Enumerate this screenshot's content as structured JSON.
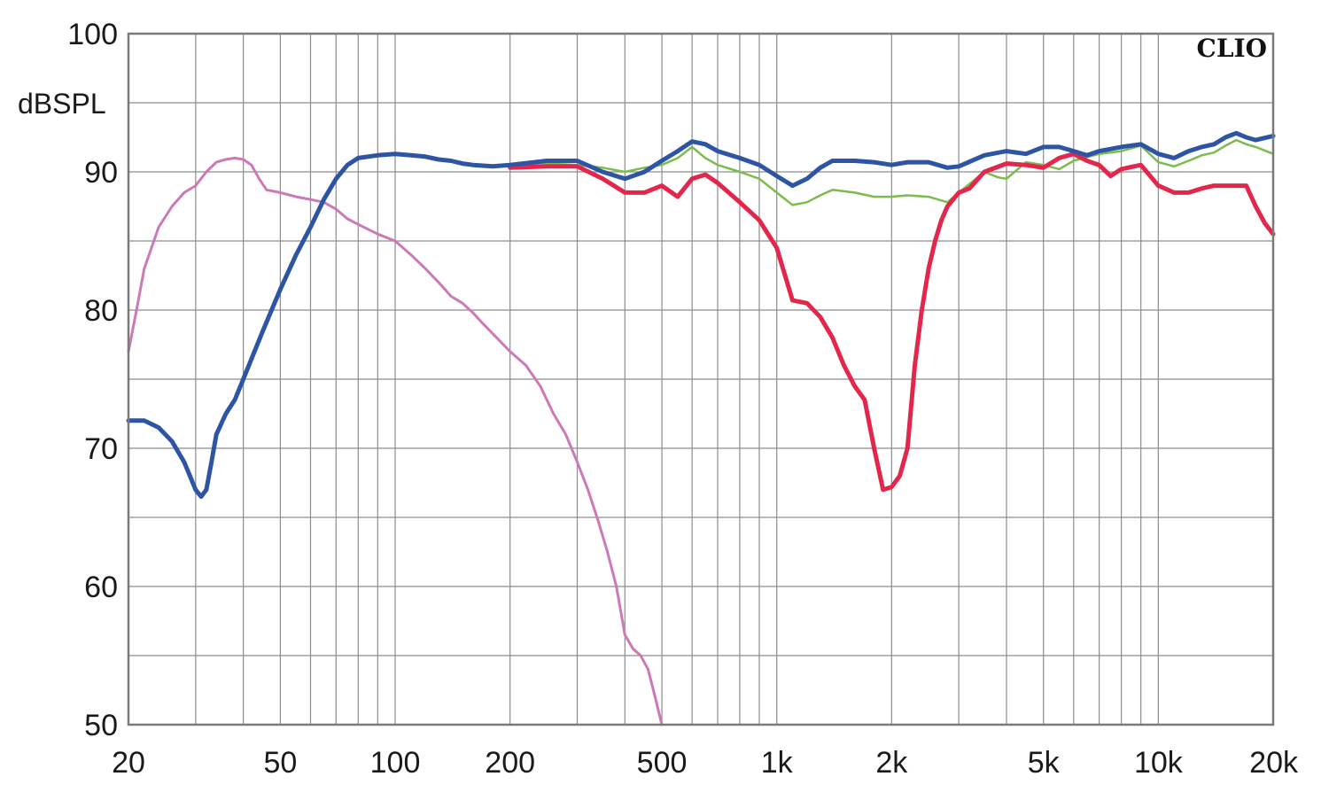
{
  "chart_data": {
    "type": "line",
    "brand": "CLIO",
    "ylabel": "dBSPL",
    "xscale": "log",
    "xlim": [
      20,
      20000
    ],
    "ylim": [
      50,
      100
    ],
    "grid": true,
    "yticks": [
      {
        "value": 100,
        "label": "100"
      },
      {
        "value": 90,
        "label": "90"
      },
      {
        "value": 80,
        "label": "80"
      },
      {
        "value": 70,
        "label": "70"
      },
      {
        "value": 60,
        "label": "60"
      },
      {
        "value": 50,
        "label": "50"
      }
    ],
    "xticks": [
      {
        "value": 20,
        "label": "20"
      },
      {
        "value": 50,
        "label": "50"
      },
      {
        "value": 100,
        "label": "100"
      },
      {
        "value": 200,
        "label": "200"
      },
      {
        "value": 500,
        "label": "500"
      },
      {
        "value": 1000,
        "label": "1k"
      },
      {
        "value": 2000,
        "label": "2k"
      },
      {
        "value": 5000,
        "label": "5k"
      },
      {
        "value": 10000,
        "label": "10k"
      },
      {
        "value": 20000,
        "label": "20k"
      }
    ],
    "series": [
      {
        "color": "#cc79b8",
        "width": 3,
        "points": [
          [
            20,
            77
          ],
          [
            21,
            80
          ],
          [
            22,
            83
          ],
          [
            24,
            86
          ],
          [
            26,
            87.5
          ],
          [
            28,
            88.5
          ],
          [
            30,
            89
          ],
          [
            32,
            90
          ],
          [
            34,
            90.7
          ],
          [
            36,
            90.9
          ],
          [
            38,
            91
          ],
          [
            40,
            90.9
          ],
          [
            42,
            90.5
          ],
          [
            44,
            89.5
          ],
          [
            46,
            88.7
          ],
          [
            50,
            88.5
          ],
          [
            55,
            88.2
          ],
          [
            60,
            88
          ],
          [
            65,
            87.8
          ],
          [
            70,
            87.3
          ],
          [
            75,
            86.6
          ],
          [
            80,
            86.2
          ],
          [
            90,
            85.5
          ],
          [
            100,
            85
          ],
          [
            110,
            84
          ],
          [
            120,
            83
          ],
          [
            130,
            82
          ],
          [
            140,
            81
          ],
          [
            150,
            80.5
          ],
          [
            160,
            79.8
          ],
          [
            170,
            79
          ],
          [
            180,
            78.3
          ],
          [
            200,
            77
          ],
          [
            220,
            76
          ],
          [
            240,
            74.5
          ],
          [
            260,
            72.5
          ],
          [
            280,
            71
          ],
          [
            300,
            69
          ],
          [
            320,
            67
          ],
          [
            340,
            64.8
          ],
          [
            360,
            62.5
          ],
          [
            380,
            60
          ],
          [
            400,
            56.5
          ],
          [
            420,
            55.5
          ],
          [
            440,
            55
          ],
          [
            460,
            54
          ],
          [
            480,
            52
          ],
          [
            500,
            50
          ]
        ]
      },
      {
        "color": "#7cbb4c",
        "width": 2.5,
        "points": [
          [
            200,
            90.5
          ],
          [
            250,
            90.6
          ],
          [
            300,
            90.5
          ],
          [
            350,
            90.3
          ],
          [
            400,
            90
          ],
          [
            450,
            90.3
          ],
          [
            500,
            90.5
          ],
          [
            550,
            91
          ],
          [
            600,
            91.8
          ],
          [
            650,
            91
          ],
          [
            700,
            90.5
          ],
          [
            800,
            90
          ],
          [
            900,
            89.5
          ],
          [
            1000,
            88.5
          ],
          [
            1100,
            87.6
          ],
          [
            1200,
            87.8
          ],
          [
            1300,
            88.3
          ],
          [
            1400,
            88.7
          ],
          [
            1600,
            88.5
          ],
          [
            1800,
            88.2
          ],
          [
            2000,
            88.2
          ],
          [
            2200,
            88.3
          ],
          [
            2500,
            88.2
          ],
          [
            2800,
            87.8
          ],
          [
            3000,
            88.5
          ],
          [
            3500,
            90
          ],
          [
            3800,
            89.6
          ],
          [
            4000,
            89.5
          ],
          [
            4500,
            90.7
          ],
          [
            5000,
            90.5
          ],
          [
            5500,
            90.2
          ],
          [
            6000,
            90.8
          ],
          [
            7000,
            91.3
          ],
          [
            8000,
            91.5
          ],
          [
            9000,
            91.9
          ],
          [
            10000,
            90.7
          ],
          [
            11000,
            90.4
          ],
          [
            12000,
            90.8
          ],
          [
            13000,
            91.2
          ],
          [
            14000,
            91.4
          ],
          [
            15000,
            91.9
          ],
          [
            16000,
            92.3
          ],
          [
            17000,
            92
          ],
          [
            18000,
            91.8
          ],
          [
            20000,
            91.3
          ]
        ]
      },
      {
        "color": "#e3274c",
        "width": 5,
        "points": [
          [
            200,
            90.3
          ],
          [
            250,
            90.4
          ],
          [
            300,
            90.4
          ],
          [
            350,
            89.5
          ],
          [
            400,
            88.5
          ],
          [
            450,
            88.5
          ],
          [
            500,
            89
          ],
          [
            550,
            88.2
          ],
          [
            600,
            89.5
          ],
          [
            650,
            89.8
          ],
          [
            700,
            89.2
          ],
          [
            800,
            87.8
          ],
          [
            900,
            86.5
          ],
          [
            1000,
            84.5
          ],
          [
            1100,
            80.7
          ],
          [
            1200,
            80.5
          ],
          [
            1300,
            79.5
          ],
          [
            1400,
            78
          ],
          [
            1500,
            76
          ],
          [
            1600,
            74.5
          ],
          [
            1700,
            73.5
          ],
          [
            1800,
            70
          ],
          [
            1900,
            67
          ],
          [
            2000,
            67.2
          ],
          [
            2100,
            68
          ],
          [
            2200,
            70
          ],
          [
            2300,
            76
          ],
          [
            2400,
            80
          ],
          [
            2500,
            83
          ],
          [
            2600,
            85
          ],
          [
            2700,
            86.5
          ],
          [
            2800,
            87.5
          ],
          [
            3000,
            88.5
          ],
          [
            3200,
            88.8
          ],
          [
            3500,
            90
          ],
          [
            4000,
            90.6
          ],
          [
            4500,
            90.5
          ],
          [
            5000,
            90.3
          ],
          [
            5500,
            91
          ],
          [
            6000,
            91.3
          ],
          [
            6500,
            90.8
          ],
          [
            7000,
            90.5
          ],
          [
            7500,
            89.7
          ],
          [
            8000,
            90.2
          ],
          [
            9000,
            90.5
          ],
          [
            10000,
            89
          ],
          [
            11000,
            88.5
          ],
          [
            12000,
            88.5
          ],
          [
            13000,
            88.8
          ],
          [
            14000,
            89
          ],
          [
            16000,
            89
          ],
          [
            17000,
            89
          ],
          [
            18000,
            87.5
          ],
          [
            19000,
            86.3
          ],
          [
            20000,
            85.5
          ]
        ]
      },
      {
        "color": "#2e55a4",
        "width": 5,
        "points": [
          [
            20,
            72
          ],
          [
            22,
            72
          ],
          [
            24,
            71.5
          ],
          [
            26,
            70.5
          ],
          [
            28,
            69
          ],
          [
            30,
            67
          ],
          [
            31,
            66.5
          ],
          [
            32,
            67
          ],
          [
            33,
            69
          ],
          [
            34,
            71
          ],
          [
            36,
            72.5
          ],
          [
            38,
            73.5
          ],
          [
            40,
            75
          ],
          [
            45,
            78.5
          ],
          [
            50,
            81.5
          ],
          [
            55,
            84
          ],
          [
            60,
            86
          ],
          [
            65,
            88
          ],
          [
            70,
            89.5
          ],
          [
            75,
            90.5
          ],
          [
            80,
            91
          ],
          [
            90,
            91.2
          ],
          [
            100,
            91.3
          ],
          [
            110,
            91.2
          ],
          [
            120,
            91.1
          ],
          [
            130,
            90.9
          ],
          [
            140,
            90.8
          ],
          [
            150,
            90.6
          ],
          [
            160,
            90.5
          ],
          [
            180,
            90.4
          ],
          [
            200,
            90.5
          ],
          [
            250,
            90.8
          ],
          [
            300,
            90.8
          ],
          [
            350,
            90
          ],
          [
            400,
            89.5
          ],
          [
            450,
            90
          ],
          [
            500,
            90.8
          ],
          [
            550,
            91.5
          ],
          [
            600,
            92.2
          ],
          [
            650,
            92
          ],
          [
            700,
            91.5
          ],
          [
            800,
            91
          ],
          [
            900,
            90.5
          ],
          [
            1000,
            89.7
          ],
          [
            1100,
            89
          ],
          [
            1200,
            89.5
          ],
          [
            1300,
            90.3
          ],
          [
            1400,
            90.8
          ],
          [
            1600,
            90.8
          ],
          [
            1800,
            90.7
          ],
          [
            2000,
            90.5
          ],
          [
            2200,
            90.7
          ],
          [
            2500,
            90.7
          ],
          [
            2800,
            90.3
          ],
          [
            3000,
            90.4
          ],
          [
            3500,
            91.2
          ],
          [
            4000,
            91.5
          ],
          [
            4500,
            91.3
          ],
          [
            5000,
            91.8
          ],
          [
            5500,
            91.8
          ],
          [
            6000,
            91.5
          ],
          [
            6500,
            91.2
          ],
          [
            7000,
            91.5
          ],
          [
            8000,
            91.8
          ],
          [
            9000,
            92
          ],
          [
            10000,
            91.3
          ],
          [
            11000,
            91
          ],
          [
            12000,
            91.5
          ],
          [
            13000,
            91.8
          ],
          [
            14000,
            92
          ],
          [
            15000,
            92.5
          ],
          [
            16000,
            92.8
          ],
          [
            17000,
            92.5
          ],
          [
            18000,
            92.3
          ],
          [
            20000,
            92.6
          ]
        ]
      }
    ]
  }
}
